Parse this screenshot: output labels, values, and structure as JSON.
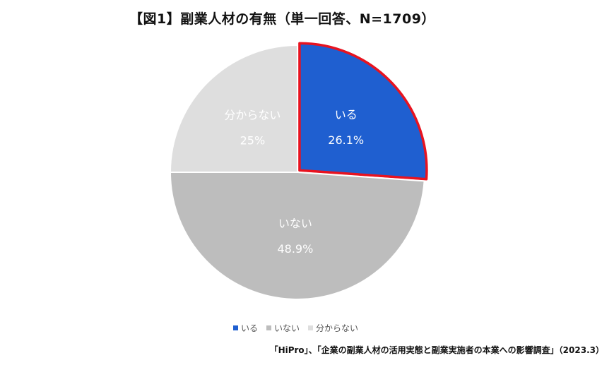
{
  "chart_data": {
    "type": "pie",
    "title": "【図1】副業人材の有無（単一回答、N=1709）",
    "slices": [
      {
        "label": "いる",
        "value": 26.1,
        "value_label": "26.1%",
        "color": "#1f5fd0",
        "highlight": "#e8131f"
      },
      {
        "label": "いない",
        "value": 48.9,
        "value_label": "48.9%",
        "color": "#bdbdbd"
      },
      {
        "label": "分からない",
        "value": 25,
        "value_label": "25%",
        "color": "#dedede"
      }
    ],
    "legend": [
      "いる",
      "いない",
      "分からない"
    ],
    "legend_position": "bottom"
  },
  "source": "「HiPro」、「企業の副業人材の活用実態と副業実施者の本業への影響調査」（2023.3）"
}
